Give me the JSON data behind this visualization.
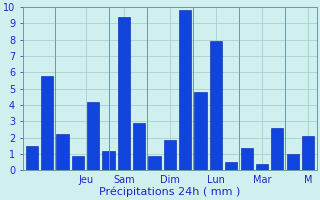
{
  "values": [
    1.5,
    5.8,
    2.2,
    0.9,
    4.2,
    1.2,
    9.4,
    2.9,
    0.9,
    1.85,
    9.8,
    4.8,
    7.9,
    0.5,
    1.4,
    0.4,
    2.6,
    1.0,
    2.1
  ],
  "day_labels": [
    "Jeu",
    "Sam",
    "Dim",
    "Lun",
    "Mar",
    "M"
  ],
  "day_tick_positions": [
    2.0,
    5.0,
    7.5,
    10.5,
    13.5,
    17.0
  ],
  "day_sep_positions": [
    3.5,
    6.0,
    9.0,
    12.0,
    15.5
  ],
  "xlabel": "Précipitations 24h ( mm )",
  "ylim": [
    0,
    10
  ],
  "yticks": [
    0,
    1,
    2,
    3,
    4,
    5,
    6,
    7,
    8,
    9,
    10
  ],
  "bar_color": "#1144dd",
  "bar_edge_color": "#0022aa",
  "background_color": "#d0f0f0",
  "grid_color": "#a0c8c8",
  "text_color": "#2222cc",
  "xlabel_fontsize": 8,
  "tick_fontsize": 7
}
